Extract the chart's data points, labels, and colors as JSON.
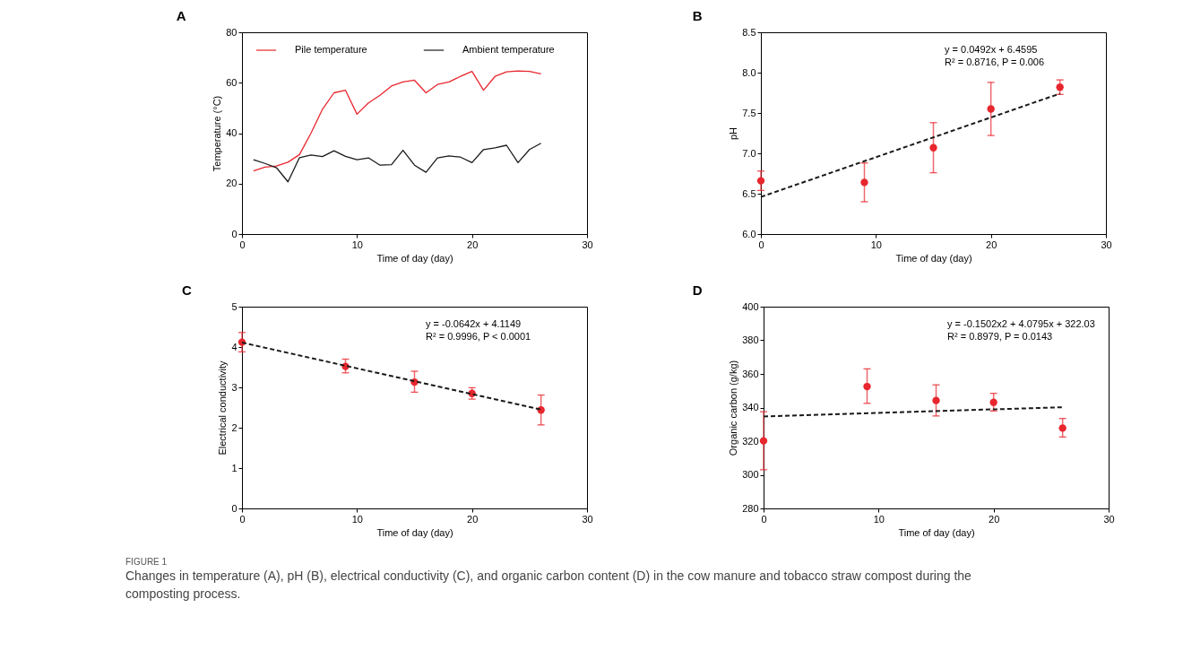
{
  "chart_data": [
    {
      "type": "line",
      "title": "A",
      "xlabel": "Time of day (day)",
      "ylabel": "Temperature (°C)",
      "xlim": [
        0,
        30
      ],
      "xticks": [
        0,
        10,
        20,
        30
      ],
      "ylim": [
        0,
        80
      ],
      "yticks": [
        0,
        20,
        40,
        60,
        80
      ],
      "legend": "top",
      "x": [
        1,
        2,
        3,
        4,
        5,
        6,
        7,
        8,
        9,
        10,
        11,
        12,
        13,
        14,
        15,
        16,
        17,
        18,
        19,
        20,
        21,
        22,
        23,
        24,
        25,
        26
      ],
      "series": [
        {
          "name": "Pile temperature",
          "color": "#e8262d",
          "values": [
            25,
            26.5,
            27,
            28.5,
            31.5,
            40,
            49.5,
            56,
            57,
            47.5,
            52,
            55,
            58.7,
            60.3,
            61,
            56,
            59.3,
            60.3,
            62.5,
            64.5,
            57,
            62.5,
            64.3,
            64.7,
            64.5,
            63.5
          ]
        },
        {
          "name": "Ambient temperature",
          "color": "#1a1a1a",
          "values": [
            29.5,
            28,
            26.3,
            20.7,
            30.3,
            31.3,
            30.7,
            33,
            30.8,
            29.5,
            30.2,
            27.3,
            27.5,
            33.2,
            27.3,
            24.5,
            30.2,
            31,
            30.5,
            28.3,
            33.5,
            34.2,
            35.2,
            28.3,
            33.5,
            36
          ]
        }
      ]
    },
    {
      "type": "scatter",
      "title": "B",
      "xlabel": "Time of day (day)",
      "ylabel": "pH",
      "xlim": [
        0,
        30
      ],
      "xticks": [
        0,
        10,
        20,
        30
      ],
      "ylim": [
        6,
        8.5
      ],
      "yticks": [
        {
          "value": 6,
          "label": "6.0"
        },
        6.5,
        {
          "value": 7,
          "label": "7.0"
        },
        7.5,
        {
          "value": 8,
          "label": "8.0"
        },
        8.5
      ],
      "annotations": [
        "y = 0.0492x + 6.4595",
        "R² = 0.8716, P = 0.006"
      ],
      "series": [
        {
          "type": "scatter",
          "marker": "circle",
          "color": "#e8262d",
          "x": [
            0,
            9,
            15,
            20,
            26
          ],
          "values": [
            6.66,
            6.64,
            7.07,
            7.55,
            7.82
          ],
          "errors": [
            [
              6.54,
              6.78
            ],
            [
              6.4,
              6.88
            ],
            [
              6.76,
              7.38
            ],
            [
              7.22,
              7.88
            ],
            [
              7.73,
              7.91
            ]
          ]
        },
        {
          "type": "line",
          "line_style": "dashed",
          "color": "#1a1a1a",
          "x": [
            0,
            26
          ],
          "values": [
            6.46,
            7.74
          ]
        }
      ]
    },
    {
      "type": "scatter",
      "title": "C",
      "xlabel": "Time of day (day)",
      "ylabel": "Electrical conductivity",
      "xlim": [
        0,
        30
      ],
      "xticks": [
        0,
        10,
        20,
        30
      ],
      "ylim": [
        0,
        5
      ],
      "yticks": [
        0,
        1,
        2,
        3,
        4,
        5
      ],
      "annotations": [
        "y = -0.0642x + 4.1149",
        "R² = 0.9996, P < 0.0001"
      ],
      "series": [
        {
          "type": "scatter",
          "marker": "circle",
          "color": "#e8262d",
          "x": [
            0,
            9,
            15,
            20,
            26
          ],
          "values": [
            4.12,
            3.52,
            3.13,
            2.85,
            2.44
          ],
          "errors": [
            [
              3.88,
              4.36
            ],
            [
              3.36,
              3.7
            ],
            [
              2.88,
              3.4
            ],
            [
              2.71,
              2.99
            ],
            [
              2.07,
              2.81
            ]
          ]
        },
        {
          "type": "line",
          "line_style": "dashed",
          "color": "#1a1a1a",
          "x": [
            0,
            26
          ],
          "values": [
            4.11,
            2.45
          ]
        }
      ]
    },
    {
      "type": "scatter",
      "title": "D",
      "xlabel": "Time of day (day)",
      "ylabel": "Organic carbon (g/kg)",
      "xlim": [
        0,
        30
      ],
      "xticks": [
        0,
        10,
        20,
        30
      ],
      "ylim": [
        280,
        400
      ],
      "yticks": [
        280,
        300,
        320,
        340,
        360,
        380,
        400
      ],
      "annotations": [
        "y = -0.1502x2 + 4.0795x + 322.03",
        "R² = 0.8979, P = 0.0143"
      ],
      "series": [
        {
          "type": "scatter",
          "marker": "circle",
          "color": "#e8262d",
          "x": [
            0,
            9,
            15,
            20,
            26
          ],
          "values": [
            320.2,
            352.5,
            344.2,
            343.1,
            327.8
          ],
          "errors": [
            [
              303,
              337.5
            ],
            [
              342.5,
              363
            ],
            [
              335,
              353.5
            ],
            [
              338,
              348.5
            ],
            [
              322.5,
              333.5
            ]
          ]
        },
        {
          "type": "line",
          "line_style": "dashed",
          "color": "#1a1a1a",
          "x": [
            0,
            26
          ],
          "values": [
            334.7,
            340.2
          ]
        }
      ]
    },
    {
      "type": "other",
      "annotations": [
        "FIGURE 1",
        "Changes in temperature (A), pH (B), electrical conductivity (C), and organic carbon content (D) in the cow manure and tobacco straw compost during the composting process."
      ]
    }
  ]
}
